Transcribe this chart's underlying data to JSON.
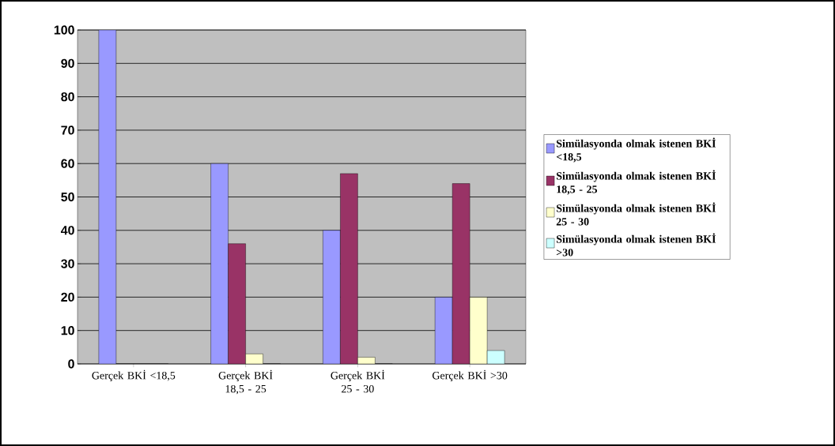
{
  "chart_data": {
    "type": "bar",
    "categories": [
      "Gerçek BKİ <18,5",
      "Gerçek BKİ 18,5 - 25",
      "Gerçek BKİ 25 - 30",
      "Gerçek BKİ >30"
    ],
    "series": [
      {
        "name": "Simülasyonda olmak istenen BKİ <18,5",
        "color": "#9999ff",
        "values": [
          100,
          60,
          40,
          20
        ]
      },
      {
        "name": "Simülasyonda olmak istenen BKİ 18,5 - 25",
        "color": "#993366",
        "values": [
          0,
          36,
          57,
          54
        ]
      },
      {
        "name": "Simülasyonda olmak istenen BKİ 25 - 30",
        "color": "#ffffcc",
        "values": [
          0,
          3,
          2,
          20
        ]
      },
      {
        "name": "Simülasyonda olmak istenen BKİ >30",
        "color": "#ccffff",
        "values": [
          0,
          0,
          0,
          4
        ]
      }
    ],
    "ylim": [
      0,
      100
    ],
    "yticks": [
      0,
      10,
      20,
      30,
      40,
      50,
      60,
      70,
      80,
      90,
      100
    ],
    "grid": "y",
    "legend": "right"
  }
}
